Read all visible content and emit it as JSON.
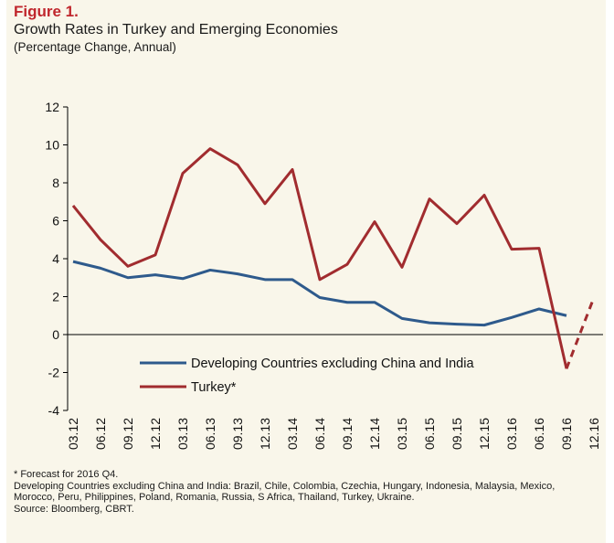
{
  "figure_label": "Figure 1.",
  "title": "Growth Rates in Turkey and Emerging Economies",
  "subtitle": "(Percentage Change, Annual)",
  "notes": {
    "forecast": "* Forecast for 2016 Q4.",
    "countries": "Developing Countries excluding China and India: Brazil, Chile, Colombia, Czechia, Hungary, Indonesia, Malaysia, Mexico, Morocco, Peru, Philippines, Poland, Romania, Russia, S Africa, Thailand, Turkey, Ukraine.",
    "source": "Source: Bloomberg, CBRT."
  },
  "colors": {
    "developing": "#2e5a8c",
    "turkey": "#a12c2f",
    "background": "#f9f6ea"
  },
  "chart_data": {
    "type": "line",
    "categories": [
      "03.12",
      "06.12",
      "09.12",
      "12.12",
      "03.13",
      "06.13",
      "09.13",
      "12.13",
      "03.14",
      "06.14",
      "09.14",
      "12.14",
      "03.15",
      "06.15",
      "09.15",
      "12.15",
      "03.16",
      "06.16",
      "09.16",
      "12.16"
    ],
    "ylim": [
      -4,
      12
    ],
    "yticks": [
      -4,
      -2,
      0,
      2,
      4,
      6,
      8,
      10,
      12
    ],
    "legend_position": "lower-center",
    "series": [
      {
        "name": "Developing Countries excluding China and India",
        "values": [
          3.85,
          3.5,
          3.0,
          3.15,
          2.95,
          3.4,
          3.2,
          2.9,
          2.9,
          1.95,
          1.7,
          1.7,
          0.85,
          0.62,
          0.55,
          0.5,
          0.9,
          1.35,
          1.0,
          null
        ]
      },
      {
        "name": "Turkey*",
        "values": [
          6.8,
          5.0,
          3.6,
          4.2,
          8.5,
          9.8,
          8.95,
          6.9,
          8.7,
          2.9,
          3.7,
          5.95,
          3.55,
          7.15,
          5.85,
          7.35,
          4.5,
          4.55,
          -1.8,
          1.95
        ],
        "forecast_from": "09.16"
      }
    ]
  }
}
